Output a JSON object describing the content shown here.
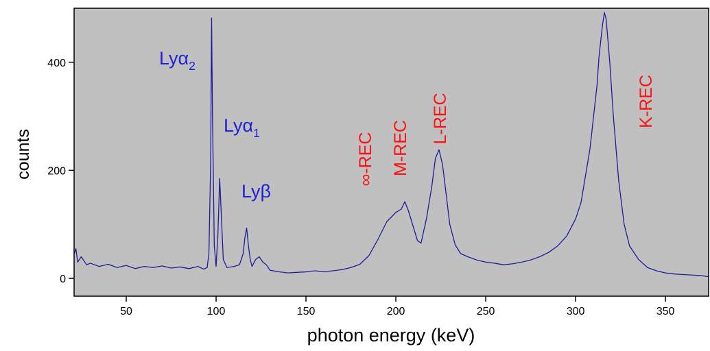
{
  "chart_data": {
    "type": "line",
    "x_label": "photon energy (keV)",
    "y_label": "counts",
    "color": "#1c1c9a",
    "plot_background": "#c0c0c0",
    "xlim": [
      21,
      374
    ],
    "ylim": [
      -33,
      500
    ],
    "xticks": [
      50,
      100,
      150,
      200,
      250,
      300,
      350
    ],
    "yticks": [
      0,
      200,
      400
    ],
    "x": [
      21,
      22,
      23,
      25,
      28,
      30,
      35,
      40,
      45,
      50,
      55,
      60,
      65,
      70,
      75,
      80,
      85,
      90,
      93,
      95,
      96,
      97,
      97.5,
      98,
      99,
      100,
      101,
      102,
      103,
      104,
      106,
      110,
      113,
      115,
      116,
      117,
      118,
      119,
      120,
      122,
      124,
      126,
      128,
      130,
      135,
      140,
      145,
      150,
      155,
      160,
      165,
      170,
      175,
      180,
      185,
      190,
      195,
      200,
      203,
      205,
      207,
      210,
      212,
      214,
      217,
      220,
      222,
      224,
      226,
      228,
      230,
      233,
      236,
      240,
      245,
      250,
      255,
      260,
      265,
      270,
      275,
      280,
      285,
      290,
      295,
      300,
      303,
      305,
      308,
      310,
      312,
      313,
      315,
      316,
      317,
      318,
      319,
      321,
      324,
      327,
      330,
      335,
      340,
      345,
      350,
      355,
      360,
      365,
      370,
      374
    ],
    "values": [
      45,
      55,
      30,
      40,
      25,
      28,
      22,
      26,
      20,
      24,
      18,
      22,
      20,
      23,
      19,
      21,
      18,
      22,
      17,
      20,
      45,
      220,
      482,
      300,
      60,
      22,
      80,
      185,
      110,
      35,
      20,
      22,
      25,
      45,
      75,
      93,
      60,
      35,
      22,
      35,
      40,
      30,
      25,
      15,
      12,
      10,
      11,
      12,
      14,
      12,
      14,
      16,
      20,
      26,
      42,
      72,
      105,
      122,
      128,
      142,
      125,
      92,
      70,
      65,
      110,
      170,
      222,
      238,
      210,
      155,
      100,
      62,
      46,
      40,
      34,
      30,
      28,
      25,
      27,
      30,
      34,
      40,
      48,
      60,
      78,
      110,
      140,
      180,
      240,
      300,
      360,
      410,
      470,
      492,
      480,
      440,
      400,
      300,
      180,
      100,
      60,
      35,
      20,
      14,
      10,
      8,
      7,
      6,
      5,
      3
    ],
    "grid": false,
    "annotations": [
      {
        "text": "Lyα",
        "sub": "2",
        "color": "#1f1fd8"
      },
      {
        "text": "Lyα",
        "sub": "1",
        "color": "#1f1fd8"
      },
      {
        "text": "Lyβ",
        "color": "#1f1fd8"
      },
      {
        "text": "∞-REC",
        "color": "#ff1010"
      },
      {
        "text": "M-REC",
        "color": "#ff1010"
      },
      {
        "text": "L-REC",
        "color": "#ff1010"
      },
      {
        "text": "K-REC",
        "color": "#ff1010"
      }
    ]
  }
}
